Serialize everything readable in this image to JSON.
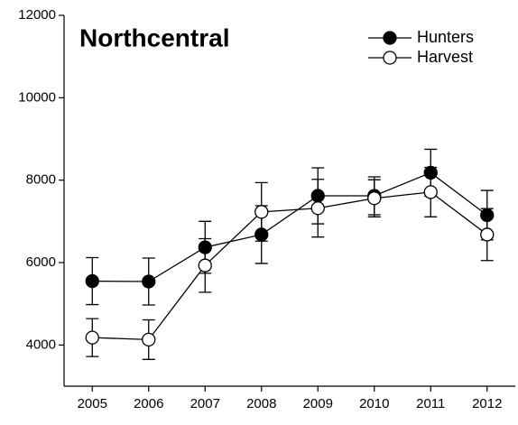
{
  "chart_data": {
    "type": "line",
    "title": "Northcentral",
    "x": [
      2005,
      2006,
      2007,
      2008,
      2009,
      2010,
      2011,
      2012
    ],
    "series": [
      {
        "name": "Hunters",
        "color": "#000000",
        "marker": "filled",
        "values": [
          5550,
          5540,
          6370,
          6680,
          7620,
          7620,
          8180,
          7150
        ],
        "errors": [
          570,
          570,
          630,
          700,
          680,
          460,
          570,
          600
        ]
      },
      {
        "name": "Harvest",
        "color": "#000000",
        "marker": "open",
        "values": [
          4180,
          4130,
          5930,
          7230,
          7320,
          7560,
          7710,
          6680
        ],
        "errors": [
          460,
          480,
          650,
          710,
          700,
          450,
          600,
          630
        ]
      }
    ],
    "xlim": [
      2004.5,
      2012.5
    ],
    "xticks": [
      2005,
      2006,
      2007,
      2008,
      2009,
      2010,
      2011,
      2012
    ],
    "ylim": [
      3000,
      12000
    ],
    "yticks": [
      4000,
      6000,
      8000,
      10000,
      12000
    ],
    "grid": false,
    "legend": "top-right"
  }
}
